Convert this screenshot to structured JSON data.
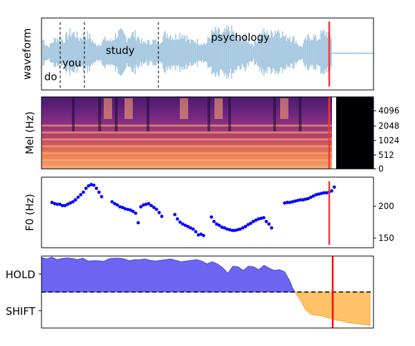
{
  "chart_data": [
    {
      "type": "area",
      "ylabel": "waveform",
      "words": [
        {
          "text": "do",
          "t": 0.02
        },
        {
          "text": "you",
          "t": 0.09
        },
        {
          "text": "study",
          "t": 0.26
        },
        {
          "text": "psychology",
          "t": 0.76
        }
      ],
      "word_boundaries": [
        0.06,
        0.17,
        0.42
      ],
      "marker_time": 1.12,
      "colors": {
        "wave": "#a6c8e0",
        "marker": "#e83b3b",
        "boundary": "#000000"
      }
    },
    {
      "type": "heatmap",
      "ylabel": "Mel (Hz)",
      "yticks": [
        "4096",
        "2048",
        "1024",
        "512",
        "0"
      ],
      "marker_time": 1.12
    },
    {
      "type": "scatter",
      "ylabel": "F0 (Hz)",
      "yticks": [
        "200",
        "150"
      ],
      "ylim": [
        135,
        245
      ],
      "marker_time": 1.12,
      "color": "#0000ff",
      "points": [
        [
          0.04,
          206
        ],
        [
          0.05,
          204
        ],
        [
          0.06,
          203
        ],
        [
          0.07,
          203
        ],
        [
          0.08,
          201
        ],
        [
          0.09,
          201
        ],
        [
          0.1,
          203
        ],
        [
          0.11,
          205
        ],
        [
          0.12,
          207
        ],
        [
          0.13,
          210
        ],
        [
          0.14,
          214
        ],
        [
          0.15,
          218
        ],
        [
          0.16,
          222
        ],
        [
          0.17,
          228
        ],
        [
          0.18,
          232
        ],
        [
          0.19,
          234
        ],
        [
          0.2,
          233
        ],
        [
          0.21,
          228
        ],
        [
          0.22,
          222
        ],
        [
          0.23,
          215
        ],
        [
          0.27,
          207
        ],
        [
          0.28,
          204
        ],
        [
          0.29,
          202
        ],
        [
          0.3,
          199
        ],
        [
          0.31,
          198
        ],
        [
          0.32,
          196
        ],
        [
          0.33,
          195
        ],
        [
          0.34,
          194
        ],
        [
          0.35,
          192
        ],
        [
          0.36,
          189
        ],
        [
          0.37,
          174
        ],
        [
          0.38,
          199
        ],
        [
          0.39,
          202
        ],
        [
          0.4,
          203
        ],
        [
          0.41,
          204
        ],
        [
          0.42,
          201
        ],
        [
          0.43,
          198
        ],
        [
          0.44,
          195
        ],
        [
          0.45,
          190
        ],
        [
          0.46,
          184
        ],
        [
          0.51,
          187
        ],
        [
          0.52,
          180
        ],
        [
          0.53,
          175
        ],
        [
          0.54,
          172
        ],
        [
          0.55,
          170
        ],
        [
          0.56,
          168
        ],
        [
          0.57,
          166
        ],
        [
          0.58,
          164
        ],
        [
          0.59,
          160
        ],
        [
          0.6,
          155
        ],
        [
          0.61,
          156
        ],
        [
          0.62,
          154
        ],
        [
          0.65,
          183
        ],
        [
          0.66,
          176
        ],
        [
          0.67,
          172
        ],
        [
          0.68,
          170
        ],
        [
          0.69,
          167
        ],
        [
          0.7,
          166
        ],
        [
          0.71,
          164
        ],
        [
          0.72,
          163
        ],
        [
          0.73,
          162
        ],
        [
          0.74,
          162
        ],
        [
          0.75,
          163
        ],
        [
          0.76,
          164
        ],
        [
          0.77,
          166
        ],
        [
          0.78,
          168
        ],
        [
          0.79,
          171
        ],
        [
          0.8,
          173
        ],
        [
          0.81,
          176
        ],
        [
          0.82,
          178
        ],
        [
          0.83,
          180
        ],
        [
          0.84,
          181
        ],
        [
          0.85,
          182
        ],
        [
          0.86,
          176
        ],
        [
          0.87,
          172
        ],
        [
          0.88,
          166
        ],
        [
          0.93,
          205
        ],
        [
          0.94,
          206
        ],
        [
          0.95,
          206
        ],
        [
          0.96,
          207
        ],
        [
          0.97,
          208
        ],
        [
          0.98,
          209
        ],
        [
          0.99,
          210
        ],
        [
          1.0,
          210
        ],
        [
          1.01,
          211
        ],
        [
          1.02,
          212
        ],
        [
          1.03,
          214
        ],
        [
          1.04,
          216
        ],
        [
          1.05,
          218
        ],
        [
          1.06,
          219
        ],
        [
          1.07,
          220
        ],
        [
          1.08,
          221
        ],
        [
          1.09,
          221
        ],
        [
          1.1,
          222
        ],
        [
          1.11,
          224
        ],
        [
          1.12,
          230
        ]
      ]
    },
    {
      "type": "area",
      "categories": [
        "HOLD",
        "SHIFT"
      ],
      "ylim": [
        -1,
        1
      ],
      "threshold": 0,
      "marker_time": 1.12,
      "colors": {
        "hold": "#5b54f0",
        "shift": "#ffbf60",
        "marker": "#ff0000"
      },
      "hold_values": [
        [
          0.0,
          0.96
        ],
        [
          0.02,
          0.92
        ],
        [
          0.04,
          0.97
        ],
        [
          0.06,
          0.9
        ],
        [
          0.08,
          0.93
        ],
        [
          0.1,
          0.95
        ],
        [
          0.12,
          0.93
        ],
        [
          0.14,
          0.9
        ],
        [
          0.16,
          0.94
        ],
        [
          0.18,
          0.86
        ],
        [
          0.2,
          0.87
        ],
        [
          0.22,
          0.87
        ],
        [
          0.24,
          0.85
        ],
        [
          0.26,
          0.92
        ],
        [
          0.28,
          0.94
        ],
        [
          0.3,
          0.94
        ],
        [
          0.32,
          0.92
        ],
        [
          0.34,
          0.87
        ],
        [
          0.36,
          0.9
        ],
        [
          0.38,
          0.9
        ],
        [
          0.4,
          0.92
        ],
        [
          0.42,
          0.88
        ],
        [
          0.44,
          0.86
        ],
        [
          0.46,
          0.88
        ],
        [
          0.48,
          0.9
        ],
        [
          0.5,
          0.92
        ],
        [
          0.52,
          0.88
        ],
        [
          0.54,
          0.84
        ],
        [
          0.56,
          0.86
        ],
        [
          0.58,
          0.88
        ],
        [
          0.6,
          0.9
        ],
        [
          0.62,
          0.86
        ],
        [
          0.64,
          0.78
        ],
        [
          0.66,
          0.84
        ],
        [
          0.68,
          0.78
        ],
        [
          0.7,
          0.68
        ],
        [
          0.72,
          0.52
        ],
        [
          0.74,
          0.72
        ],
        [
          0.76,
          0.7
        ],
        [
          0.78,
          0.6
        ],
        [
          0.8,
          0.72
        ],
        [
          0.82,
          0.7
        ],
        [
          0.84,
          0.62
        ],
        [
          0.86,
          0.74
        ],
        [
          0.88,
          0.66
        ],
        [
          0.9,
          0.6
        ],
        [
          0.92,
          0.62
        ],
        [
          0.94,
          0.56
        ],
        [
          0.96,
          0.3
        ],
        [
          0.97,
          0.12
        ],
        [
          0.98,
          0.0
        ]
      ],
      "shift_values": [
        [
          0.98,
          0.0
        ],
        [
          1.0,
          -0.22
        ],
        [
          1.02,
          -0.48
        ],
        [
          1.04,
          -0.62
        ],
        [
          1.06,
          -0.64
        ],
        [
          1.08,
          -0.66
        ],
        [
          1.1,
          -0.7
        ],
        [
          1.12,
          -0.74
        ],
        [
          1.14,
          -0.78
        ],
        [
          1.16,
          -0.8
        ],
        [
          1.18,
          -0.84
        ],
        [
          1.2,
          -0.86
        ],
        [
          1.22,
          -0.88
        ],
        [
          1.24,
          -0.9
        ],
        [
          1.26,
          -0.92
        ],
        [
          1.27,
          -0.93
        ]
      ]
    }
  ]
}
